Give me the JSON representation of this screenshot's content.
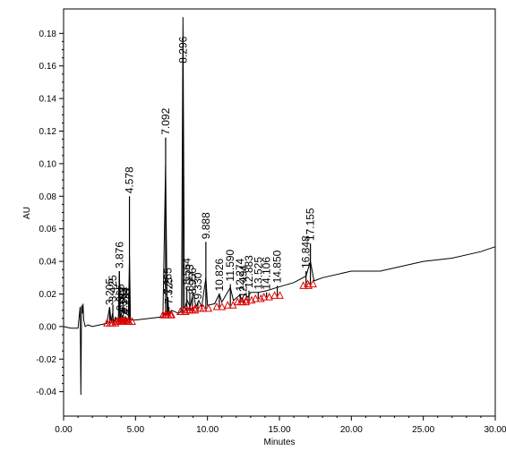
{
  "chart_data": {
    "type": "line",
    "title": "",
    "xlabel": "Minutes",
    "ylabel": "AU",
    "xlim": [
      0,
      30
    ],
    "ylim": [
      -0.055,
      0.195
    ],
    "x_ticks": [
      "0.00",
      "5.00",
      "10.00",
      "15.00",
      "20.00",
      "25.00",
      "30.00"
    ],
    "y_ticks": [
      "-0.04",
      "-0.02",
      "0.00",
      "0.02",
      "0.04",
      "0.06",
      "0.08",
      "0.10",
      "0.12",
      "0.14",
      "0.16",
      "0.18"
    ],
    "grid": false,
    "legend": "none",
    "line_color": "#000000",
    "marker_color": "#e00000",
    "series": [
      {
        "x": [
          0,
          0.5,
          1.0,
          1.15,
          1.2,
          1.25,
          1.3,
          1.35,
          1.4,
          1.5,
          1.7,
          2.0,
          2.5,
          3.0,
          3.2,
          3.3,
          3.4,
          3.5,
          3.6,
          3.7,
          3.8,
          3.876,
          3.95,
          4.1,
          4.2,
          4.3,
          4.4,
          4.5,
          4.578,
          4.65,
          5.0,
          6.0,
          6.9,
          7.092,
          7.2,
          7.25,
          7.3,
          7.5,
          8.0,
          8.2,
          8.296,
          8.4,
          8.6,
          8.8,
          9.0,
          9.2,
          9.4,
          9.6,
          9.888,
          10.0,
          10.5,
          10.826,
          11.0,
          11.59,
          11.8,
          12.2,
          12.4,
          12.6,
          12.8,
          13.0,
          13.525,
          14.106,
          14.85,
          16.0,
          16.848,
          17.155,
          17.4,
          18.0,
          20.0,
          22.0,
          24.0,
          25.0,
          27.0,
          29.0,
          30.0
        ],
        "y": [
          0.0,
          -0.001,
          -0.001,
          0.012,
          -0.042,
          0.013,
          0.008,
          0.014,
          0.004,
          0.0,
          0.001,
          0.0,
          0.001,
          0.002,
          0.012,
          0.003,
          0.008,
          0.002,
          0.006,
          0.002,
          0.004,
          0.034,
          0.004,
          0.012,
          0.003,
          0.006,
          0.003,
          0.004,
          0.043,
          0.004,
          0.004,
          0.005,
          0.006,
          0.099,
          0.008,
          0.018,
          0.008,
          0.01,
          0.008,
          0.01,
          0.19,
          0.011,
          0.016,
          0.012,
          0.021,
          0.012,
          0.016,
          0.012,
          0.03,
          0.013,
          0.014,
          0.02,
          0.015,
          0.024,
          0.016,
          0.019,
          0.017,
          0.02,
          0.018,
          0.021,
          0.021,
          0.022,
          0.024,
          0.027,
          0.031,
          0.04,
          0.028,
          0.03,
          0.034,
          0.034,
          0.038,
          0.04,
          0.042,
          0.046,
          0.049
        ]
      }
    ],
    "peaks": [
      {
        "label": "3.205",
        "x": 3.205,
        "y": 0.0115,
        "base": 0.002
      },
      {
        "label": "3.425",
        "x": 3.425,
        "y": 0.0135,
        "base": 0.002
      },
      {
        "label": "3.876",
        "x": 3.876,
        "y": 0.034,
        "base": 0.003
      },
      {
        "label": "3.965",
        "x": 3.965,
        "y": 0.008,
        "base": 0.003
      },
      {
        "label": "4.077",
        "x": 4.077,
        "y": 0.007,
        "base": 0.003
      },
      {
        "label": "4.163",
        "x": 4.163,
        "y": 0.006,
        "base": 0.003
      },
      {
        "label": "4.294",
        "x": 4.294,
        "y": 0.006,
        "base": 0.003
      },
      {
        "label": "4.378",
        "x": 4.378,
        "y": 0.005,
        "base": 0.003
      },
      {
        "label": "4.578",
        "x": 4.578,
        "y": 0.08,
        "base": 0.003
      },
      {
        "label": "7.092",
        "x": 7.092,
        "y": 0.116,
        "base": 0.007
      },
      {
        "label": "7.255",
        "x": 7.255,
        "y": 0.018,
        "base": 0.007
      },
      {
        "label": "7.325",
        "x": 7.325,
        "y": 0.012,
        "base": 0.007
      },
      {
        "label": "8.296",
        "x": 8.296,
        "y": 0.16,
        "base": 0.009
      },
      {
        "label": "8.564",
        "x": 8.564,
        "y": 0.024,
        "base": 0.01
      },
      {
        "label": "8.773",
        "x": 8.773,
        "y": 0.02,
        "base": 0.01
      },
      {
        "label": "8.956",
        "x": 8.956,
        "y": 0.018,
        "base": 0.01
      },
      {
        "label": "9.330",
        "x": 9.33,
        "y": 0.015,
        "base": 0.011
      },
      {
        "label": "9.888",
        "x": 9.888,
        "y": 0.052,
        "base": 0.011
      },
      {
        "label": "10.826",
        "x": 10.826,
        "y": 0.02,
        "base": 0.012
      },
      {
        "label": "11.590",
        "x": 11.59,
        "y": 0.026,
        "base": 0.013
      },
      {
        "label": "12.274",
        "x": 12.274,
        "y": 0.02,
        "base": 0.015
      },
      {
        "label": "12.494",
        "x": 12.494,
        "y": 0.016,
        "base": 0.015
      },
      {
        "label": "12.883",
        "x": 12.883,
        "y": 0.022,
        "base": 0.016
      },
      {
        "label": "13.525",
        "x": 13.525,
        "y": 0.021,
        "base": 0.017
      },
      {
        "label": "14.106",
        "x": 14.106,
        "y": 0.021,
        "base": 0.018
      },
      {
        "label": "14.850",
        "x": 14.85,
        "y": 0.025,
        "base": 0.019
      },
      {
        "label": "16.848",
        "x": 16.848,
        "y": 0.034,
        "base": 0.025
      },
      {
        "label": "17.155",
        "x": 17.155,
        "y": 0.051,
        "base": 0.026
      }
    ]
  }
}
